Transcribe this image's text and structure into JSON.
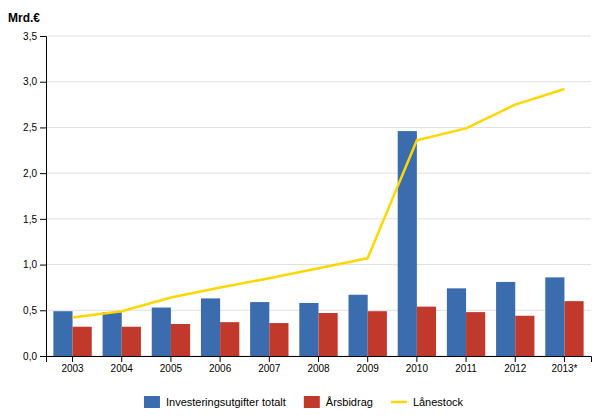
{
  "chart_data": {
    "type": "bar",
    "ylabel": "Mrd.€",
    "categories": [
      "2003",
      "2004",
      "2005",
      "2006",
      "2007",
      "2008",
      "2009",
      "2010",
      "2011",
      "2012",
      "2013*"
    ],
    "series": [
      {
        "name": "Investeringsutgifter totalt",
        "color": "#3B6DAE",
        "type": "bar",
        "values": [
          0.49,
          0.48,
          0.53,
          0.63,
          0.59,
          0.58,
          0.67,
          2.46,
          0.74,
          0.81,
          0.86
        ]
      },
      {
        "name": "Årsbidrag",
        "color": "#C0392B",
        "type": "bar",
        "values": [
          0.32,
          0.32,
          0.35,
          0.37,
          0.36,
          0.47,
          0.49,
          0.54,
          0.48,
          0.44,
          0.6
        ]
      },
      {
        "name": "Lånestock",
        "color": "#FFD700",
        "type": "line",
        "values": [
          0.42,
          0.49,
          0.64,
          0.75,
          0.85,
          0.96,
          1.07,
          2.36,
          2.49,
          2.75,
          2.92
        ]
      }
    ],
    "ylim": [
      0,
      3.5
    ],
    "yticks": [
      {
        "value": 0.0,
        "label": "0,0"
      },
      {
        "value": 0.5,
        "label": "0,5"
      },
      {
        "value": 1.0,
        "label": "1,0"
      },
      {
        "value": 1.5,
        "label": "1,5"
      },
      {
        "value": 2.0,
        "label": "2,0"
      },
      {
        "value": 2.5,
        "label": "2,5"
      },
      {
        "value": 3.0,
        "label": "3,0"
      },
      {
        "value": 3.5,
        "label": "3,5"
      }
    ],
    "grid": true,
    "legend": "bottom"
  }
}
